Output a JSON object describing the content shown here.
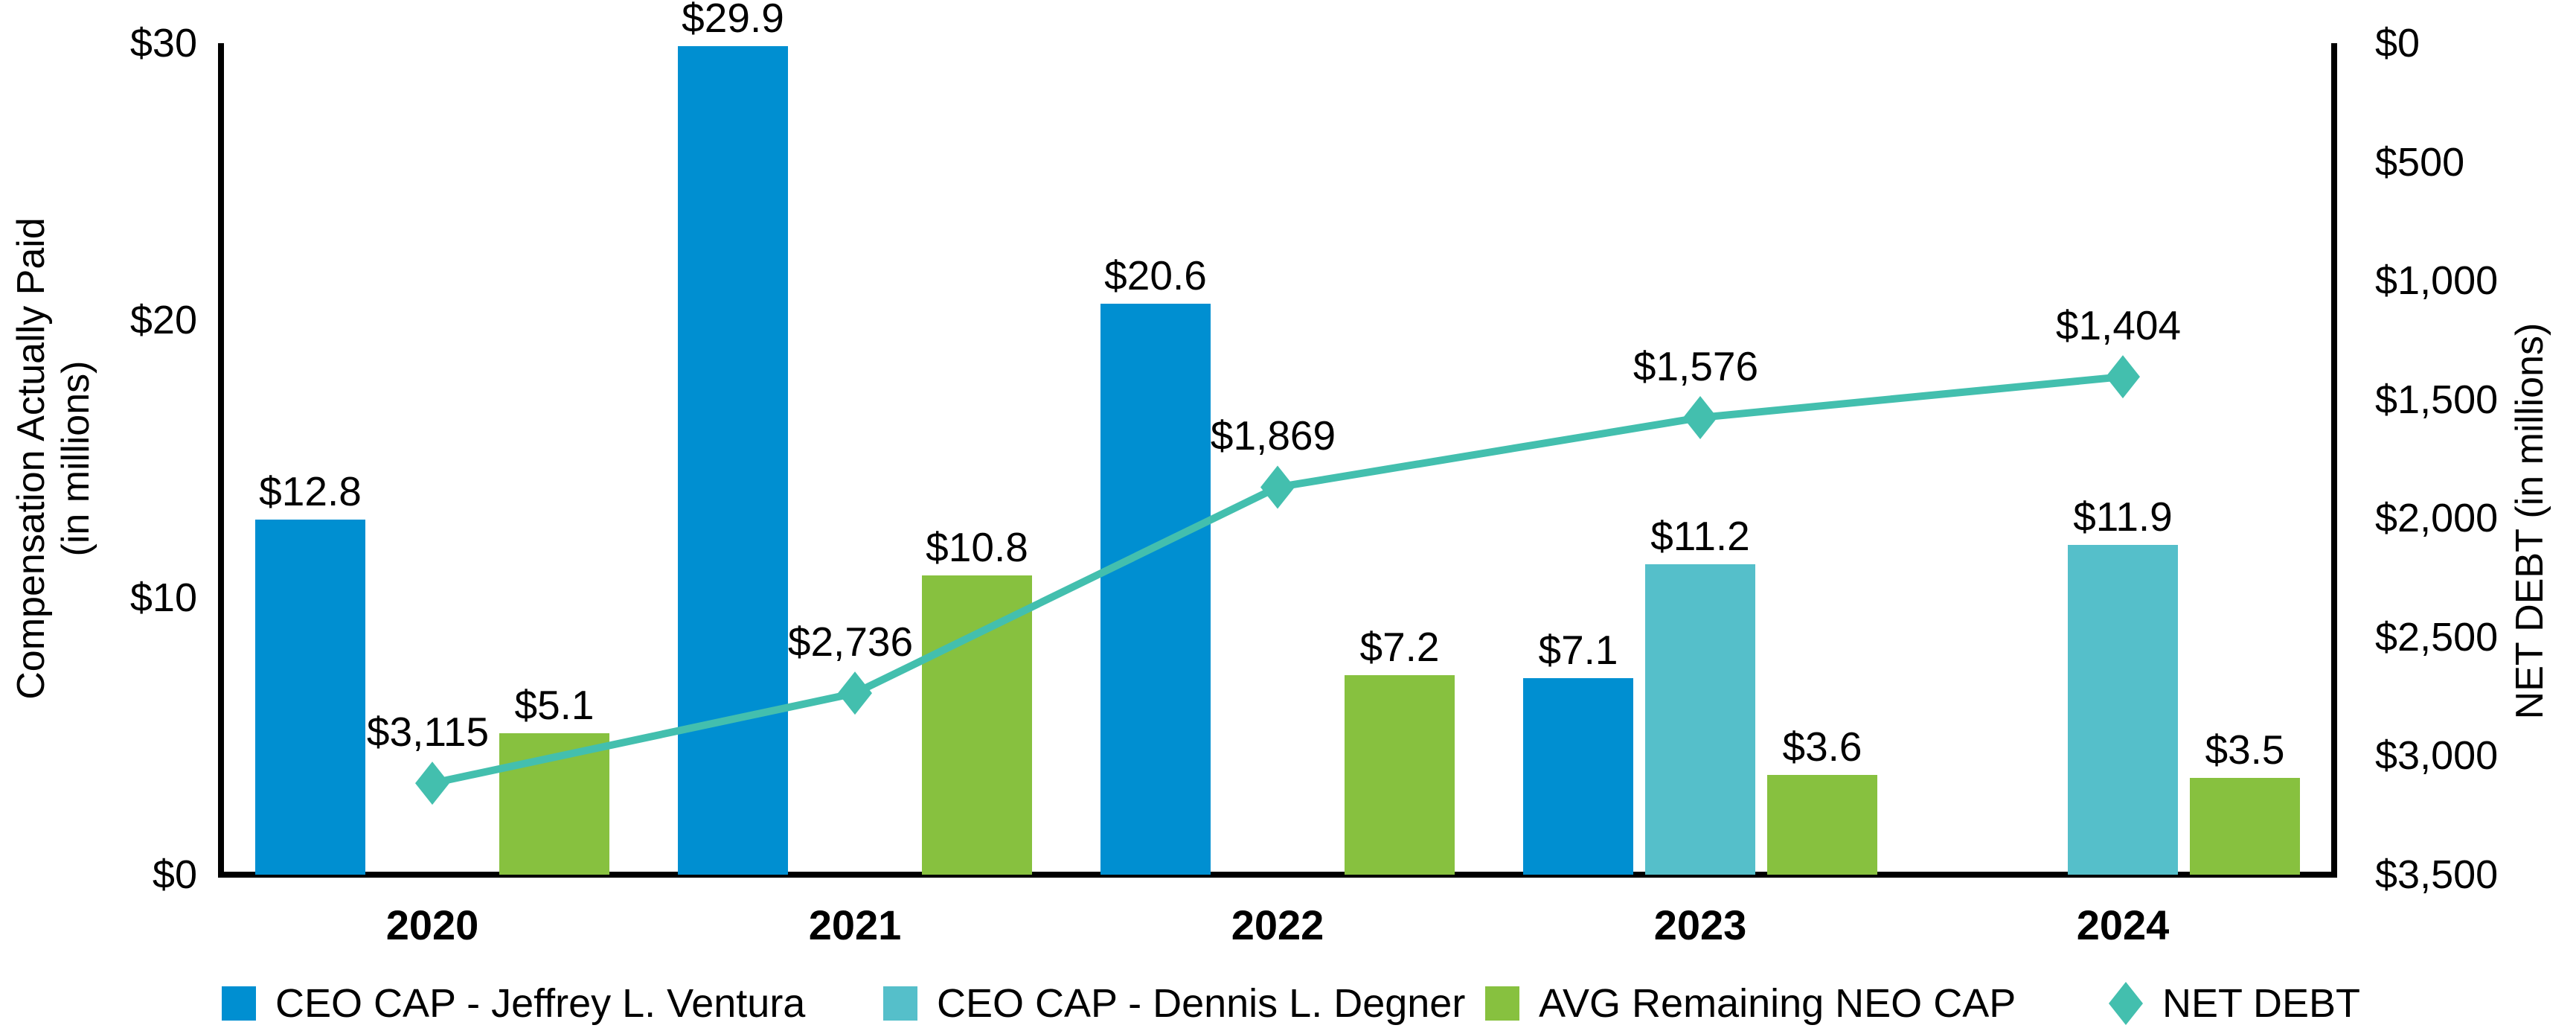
{
  "chart_data": {
    "type": "bar",
    "subtype": "grouped-bar-with-line-combo",
    "categories": [
      "2020",
      "2021",
      "2022",
      "2023",
      "2024"
    ],
    "series": [
      {
        "name": "CEO CAP - Jeffrey L. Ventura",
        "kind": "bar",
        "color": "#008fd1",
        "values": [
          12.8,
          29.9,
          20.6,
          7.1,
          null
        ],
        "labels": [
          "$12.8",
          "$29.9",
          "$20.6",
          "$7.1",
          null
        ]
      },
      {
        "name": "CEO CAP - Dennis L. Degner",
        "kind": "bar",
        "color": "#55bfca",
        "values": [
          null,
          null,
          null,
          11.2,
          11.9
        ],
        "labels": [
          null,
          null,
          null,
          "$11.2",
          "$11.9"
        ]
      },
      {
        "name": "AVG Remaining NEO CAP",
        "kind": "bar",
        "color": "#87c13f",
        "values": [
          5.1,
          10.8,
          7.2,
          3.6,
          3.5
        ],
        "labels": [
          "$5.1",
          "$10.8",
          "$7.2",
          "$3.6",
          "$3.5"
        ]
      },
      {
        "name": "NET DEBT",
        "kind": "line",
        "color": "#43bfae",
        "marker": "diamond",
        "values": [
          3115,
          2736,
          1869,
          1576,
          1404
        ],
        "labels": [
          "$3,115",
          "$2,736",
          "$1,869",
          "$1,576",
          "$1,404"
        ]
      }
    ],
    "left_axis": {
      "title_line1": "Compensation Actually Paid",
      "title_line2": "(in millions)",
      "ticks": [
        {
          "label": "$30",
          "value": 30
        },
        {
          "label": "$20",
          "value": 20
        },
        {
          "label": "$10",
          "value": 10
        },
        {
          "label": "$0",
          "value": 0
        }
      ],
      "range": [
        0,
        30
      ]
    },
    "right_axis": {
      "title": "NET DEBT (in millions)",
      "inverted": true,
      "ticks": [
        {
          "label": "$0",
          "value": 0
        },
        {
          "label": "$500",
          "value": 500
        },
        {
          "label": "$1,000",
          "value": 1000
        },
        {
          "label": "$1,500",
          "value": 1500
        },
        {
          "label": "$2,000",
          "value": 2000
        },
        {
          "label": "$2,500",
          "value": 2500
        },
        {
          "label": "$3,000",
          "value": 3000
        },
        {
          "label": "$3,500",
          "value": 3500
        }
      ],
      "range": [
        0,
        3500
      ]
    },
    "legend": [
      {
        "label": "CEO CAP - Jeffrey L. Ventura",
        "marker": "square",
        "color": "#008fd1"
      },
      {
        "label": "CEO CAP - Dennis L. Degner",
        "marker": "square",
        "color": "#55bfca"
      },
      {
        "label": "AVG Remaining NEO CAP",
        "marker": "square",
        "color": "#87c13f"
      },
      {
        "label": "NET DEBT",
        "marker": "diamond",
        "color": "#43bfae"
      }
    ],
    "layout_hints": {
      "grid": "off",
      "legend_position": "bottom",
      "bar_colors_note": "blue=Ventura, teal=Degner, green=NEO avg, teal diamond line=net debt (right axis inverted 0 top to 3500 bottom)"
    }
  }
}
